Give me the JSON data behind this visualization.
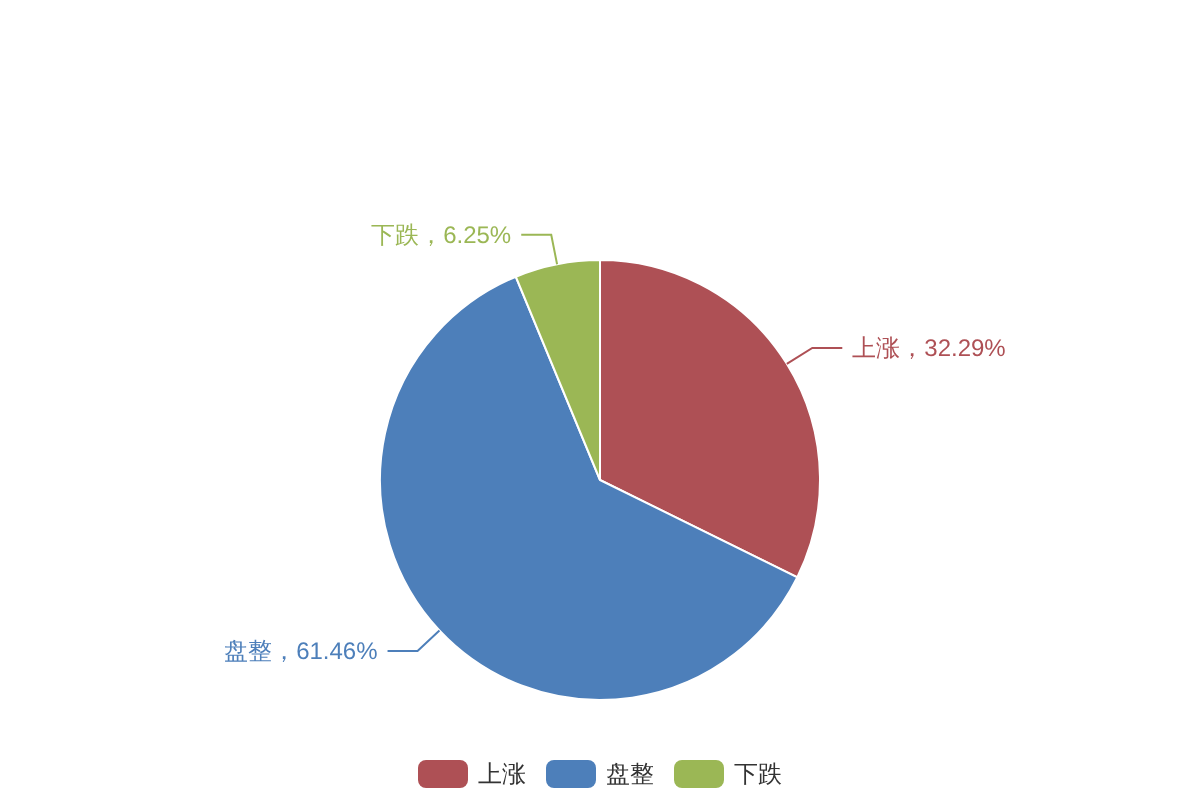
{
  "chart_data": {
    "type": "pie",
    "categories": [
      "上涨",
      "盘整",
      "下跌"
    ],
    "values": [
      32.29,
      61.46,
      6.25
    ],
    "colors": [
      "#ae5055",
      "#4d7fba",
      "#9bb755"
    ],
    "value_labels": [
      "上涨，32.29%",
      "盘整，61.46%",
      "下跌，6.25%"
    ],
    "legend": "bottom"
  }
}
